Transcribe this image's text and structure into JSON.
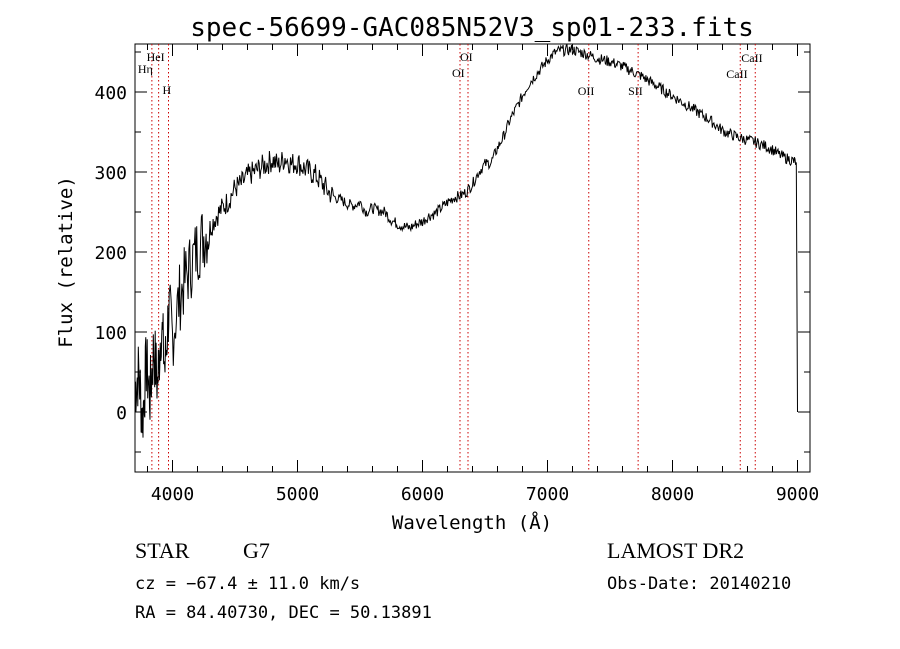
{
  "chart_data": {
    "type": "line",
    "title": "spec-56699-GAC085N52V3_sp01-233.fits",
    "xlabel": "Wavelength (Å)",
    "ylabel": "Flux (relative)",
    "xlim": [
      3700,
      9100
    ],
    "ylim": [
      -75,
      460
    ],
    "xticks": [
      4000,
      5000,
      6000,
      7000,
      8000,
      9000
    ],
    "yticks": [
      0,
      100,
      200,
      300,
      400
    ],
    "grid": false,
    "line_color": "#000000",
    "marker_color": "#cc0000",
    "series": [
      {
        "x": [
          3700,
          3730,
          3760,
          3790,
          3820,
          3850,
          3880,
          3910,
          3940,
          3970,
          4000,
          4050,
          4100,
          4150,
          4200,
          4250,
          4300,
          4350,
          4400,
          4450,
          4500,
          4550,
          4600,
          4650,
          4700,
          4750,
          4800,
          4850,
          4900,
          4950,
          5000,
          5050,
          5100,
          5150,
          5200,
          5250,
          5300,
          5350,
          5400,
          5450,
          5500,
          5550,
          5600,
          5650,
          5700,
          5750,
          5800,
          5850,
          5900,
          5950,
          6000,
          6050,
          6100,
          6150,
          6200,
          6250,
          6300,
          6350,
          6400,
          6450,
          6500,
          6550,
          6600,
          6650,
          6700,
          6750,
          6800,
          6850,
          6900,
          6950,
          7000,
          7050,
          7100,
          7150,
          7200,
          7250,
          7300,
          7350,
          7400,
          7450,
          7500,
          7550,
          7600,
          7650,
          7700,
          7750,
          7800,
          7850,
          7900,
          7950,
          8000,
          8050,
          8100,
          8150,
          8200,
          8250,
          8300,
          8350,
          8400,
          8450,
          8500,
          8550,
          8600,
          8650,
          8700,
          8750,
          8800,
          8850,
          8900,
          8950,
          8990
        ],
        "y": [
          30,
          50,
          -10,
          60,
          20,
          80,
          35,
          110,
          55,
          130,
          95,
          140,
          165,
          185,
          205,
          220,
          230,
          245,
          255,
          265,
          280,
          285,
          295,
          300,
          305,
          310,
          315,
          308,
          318,
          310,
          312,
          305,
          300,
          295,
          285,
          275,
          268,
          265,
          260,
          258,
          262,
          250,
          255,
          252,
          250,
          240,
          235,
          232,
          230,
          235,
          238,
          245,
          248,
          255,
          262,
          268,
          270,
          275,
          285,
          300,
          310,
          312,
          330,
          345,
          365,
          380,
          395,
          410,
          420,
          430,
          440,
          448,
          452,
          452,
          453,
          450,
          448,
          445,
          442,
          440,
          438,
          435,
          432,
          428,
          424,
          420,
          415,
          410,
          405,
          400,
          395,
          390,
          385,
          380,
          375,
          370,
          365,
          358,
          352,
          348,
          345,
          342,
          340,
          338,
          335,
          332,
          328,
          322,
          318,
          315,
          312
        ]
      }
    ],
    "line_markers": [
      {
        "label": "Hη",
        "x": 3835
      },
      {
        "label": "HeI",
        "x": 3889
      },
      {
        "label": "H",
        "x": 3968
      },
      {
        "label": "OI",
        "x": 6300
      },
      {
        "label": "OI",
        "x": 6364
      },
      {
        "label": "OII",
        "x": 7330
      },
      {
        "label": "SII",
        "x": 7725
      },
      {
        "label": "CaII",
        "x": 8542
      },
      {
        "label": "CaII",
        "x": 8662
      }
    ]
  },
  "info": {
    "object_class": "STAR",
    "subclass": "G7",
    "redshift": "cz = −67.4 ± 11.0 km/s",
    "coords": "RA =  84.40730, DEC =  50.13891",
    "survey": "LAMOST DR2",
    "obs_date": "Obs-Date: 20140210"
  }
}
